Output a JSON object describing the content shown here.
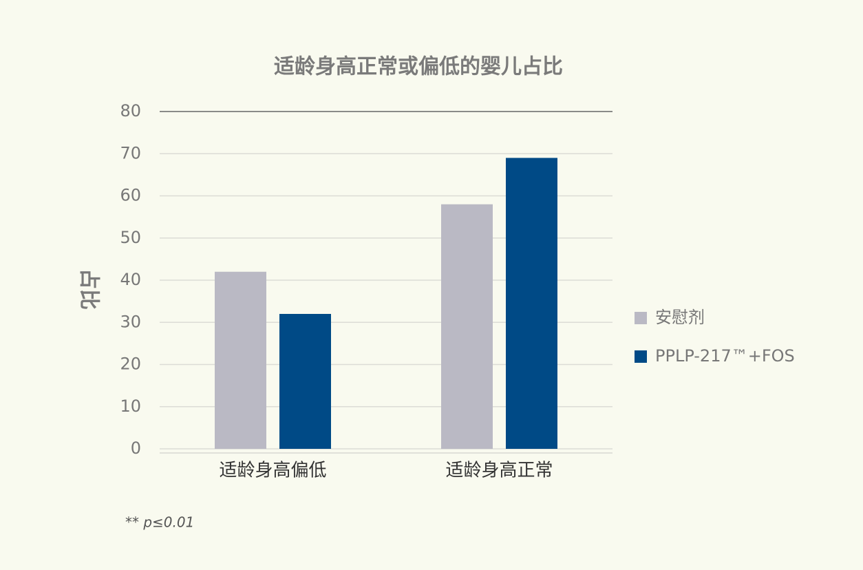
{
  "chart_data": {
    "type": "bar",
    "title": "适龄身高正常或偏低的婴儿占比",
    "y_label": "占比",
    "categories": [
      "适龄身高偏低",
      "适龄身高正常"
    ],
    "series": [
      {
        "name": "安慰剂",
        "color": "#bab9c4",
        "values": [
          42,
          58
        ]
      },
      {
        "name": "PPLP-217™+FOS",
        "color": "#004a86",
        "values": [
          32,
          69
        ]
      }
    ],
    "ylim": [
      0,
      80
    ],
    "yticks": [
      0,
      10,
      20,
      30,
      40,
      50,
      60,
      70,
      80
    ],
    "grid": true,
    "legend": "right",
    "annotation": "** p≤0.01"
  }
}
